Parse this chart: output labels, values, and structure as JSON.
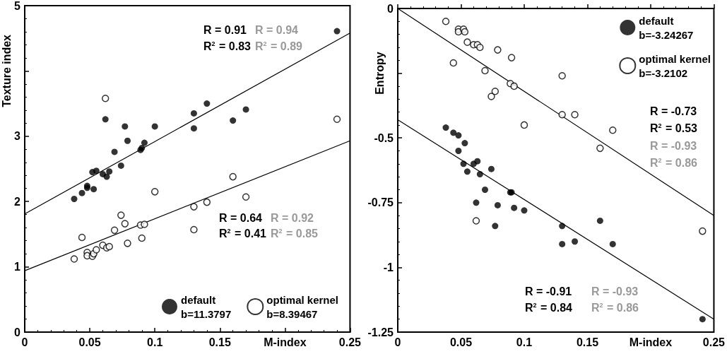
{
  "chart_data": [
    {
      "type": "scatter",
      "xlabel": "M-index",
      "ylabel": "Texture index",
      "xlim": [
        0,
        0.25
      ],
      "ylim": [
        0,
        5
      ],
      "xticks": [
        0,
        0.05,
        0.1,
        0.15,
        {
          "value": 0.2,
          "label": null
        },
        0.25
      ],
      "yticks": [
        0,
        1,
        2,
        3,
        {
          "value": 4,
          "label": null
        },
        5
      ],
      "grid": false,
      "legend": "bottom right",
      "marker": "circle",
      "annotations": [
        "R = 0.91",
        "R = 0.94",
        "R$^{2}$ = 0.83",
        "R$^{2}$ = 0.89",
        "R = 0.64",
        "R = 0.92",
        "R$^{2}$ = 0.41",
        "R$^{2}$ = 0.85"
      ],
      "series": [
        {
          "name": "default\nb=11.3797",
          "color": "#000000",
          "x": [
            0.038,
            0.044,
            0.048,
            0.048,
            0.053,
            0.052,
            0.055,
            0.06,
            0.063,
            0.065,
            0.062,
            0.069,
            0.074,
            0.077,
            0.079,
            0.089,
            0.09,
            0.092,
            0.1,
            0.13,
            0.13,
            0.14,
            0.16,
            0.17,
            0.24
          ],
          "values": [
            2.04,
            2.13,
            2.24,
            2.21,
            2.19,
            2.45,
            2.47,
            2.42,
            2.38,
            2.46,
            3.26,
            2.76,
            2.55,
            3.15,
            2.93,
            2.79,
            2.82,
            2.9,
            3.15,
            3.35,
            3.12,
            3.5,
            3.24,
            3.41,
            4.61
          ]
        },
        {
          "name": "optimal kernel\nb=8.39467",
          "color": "#000000",
          "x": [
            0.038,
            0.044,
            0.048,
            0.048,
            0.052,
            0.053,
            0.055,
            0.06,
            0.063,
            0.065,
            0.062,
            0.069,
            0.074,
            0.077,
            0.079,
            0.089,
            0.09,
            0.092,
            0.1,
            0.13,
            0.13,
            0.14,
            0.16,
            0.17,
            0.24
          ],
          "values": [
            1.12,
            1.45,
            1.22,
            1.17,
            1.16,
            1.2,
            1.26,
            1.33,
            1.29,
            1.31,
            3.58,
            1.56,
            1.79,
            1.66,
            1.36,
            1.64,
            1.44,
            1.65,
            2.15,
            1.92,
            1.57,
            1.99,
            2.38,
            2.07,
            3.26
          ]
        },
        {
          "type": "line",
          "color": "#000000",
          "marker": "none",
          "line_style": "solid",
          "x": [
            0,
            0.25
          ],
          "values": [
            1.81,
            4.58
          ]
        },
        {
          "type": "line",
          "color": "#000000",
          "marker": "none",
          "line_style": "solid",
          "x": [
            0,
            0.25
          ],
          "values": [
            0.94,
            2.93
          ]
        }
      ]
    },
    {
      "type": "scatter",
      "xlabel": "M-index",
      "ylabel": "Entropy",
      "xlim": [
        0,
        0.25
      ],
      "ylim": [
        -1.25,
        0
      ],
      "xticks": [
        0,
        0.05,
        0.1,
        0.15,
        {
          "value": 0.2,
          "label": null
        },
        0.25
      ],
      "yticks": [
        -1.25,
        -1,
        -0.75,
        -0.5,
        {
          "value": -0.25,
          "label": null
        },
        0
      ],
      "grid": false,
      "legend": "top right",
      "marker": "circle",
      "annotations": [
        "R = -0.73",
        "R$^{2}$ = 0.53",
        "R = -0.93",
        "R$^{2}$ = 0.86",
        "R = -0.91",
        "R = -0.93",
        "R$^{2}$ = 0.84",
        "R$^{2}$ = 0.86"
      ],
      "series": [
        {
          "name": "default\nb=-3.24267",
          "color": "#000000",
          "x": [
            0.038,
            0.044,
            0.048,
            0.053,
            0.048,
            0.052,
            0.055,
            0.06,
            0.063,
            0.065,
            0.074,
            0.069,
            0.062,
            0.077,
            0.079,
            0.089,
            0.09,
            0.092,
            0.1,
            0.13,
            0.13,
            0.14,
            0.16,
            0.17,
            0.241
          ],
          "values": [
            -0.46,
            -0.48,
            -0.49,
            -0.52,
            -0.55,
            -0.6,
            -0.63,
            -0.6,
            -0.59,
            -0.64,
            -0.62,
            -0.7,
            -0.75,
            -0.84,
            -0.76,
            -0.71,
            -0.71,
            -0.77,
            -0.78,
            -0.84,
            -0.91,
            -0.9,
            -0.82,
            -0.91,
            -1.2
          ]
        },
        {
          "name": "optimal kernel\nb=-3.2102",
          "color": "#000000",
          "x": [
            0.038,
            0.044,
            0.048,
            0.048,
            0.052,
            0.053,
            0.055,
            0.06,
            0.063,
            0.065,
            0.062,
            0.069,
            0.074,
            0.077,
            0.079,
            0.089,
            0.09,
            0.092,
            0.1,
            0.13,
            0.13,
            0.14,
            0.16,
            0.17,
            0.241
          ],
          "values": [
            -0.05,
            -0.21,
            -0.08,
            -0.09,
            -0.08,
            -0.09,
            -0.13,
            -0.14,
            -0.14,
            -0.15,
            -0.82,
            -0.24,
            -0.34,
            -0.32,
            -0.16,
            -0.29,
            -0.19,
            -0.3,
            -0.45,
            -0.26,
            -0.41,
            -0.41,
            -0.54,
            -0.47,
            -0.86
          ]
        },
        {
          "type": "line",
          "color": "#000000",
          "marker": "none",
          "line_style": "solid",
          "x": [
            0,
            0.25
          ],
          "values": [
            0,
            -0.8
          ]
        },
        {
          "type": "line",
          "color": "#000000",
          "marker": "none",
          "line_style": "solid",
          "x": [
            0,
            0.25
          ],
          "values": [
            -0.43,
            -1.2
          ]
        }
      ]
    }
  ]
}
